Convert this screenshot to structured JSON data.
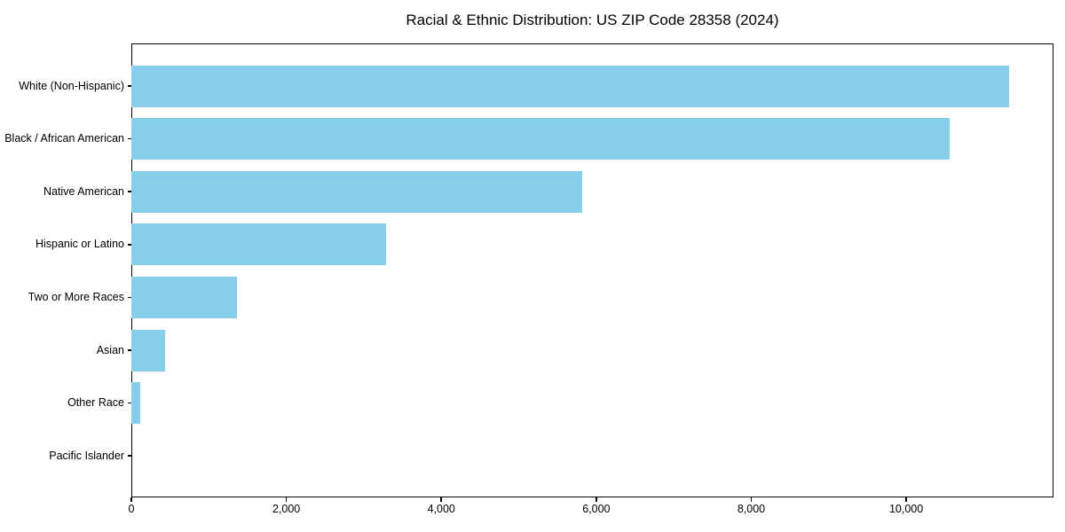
{
  "chart_data": {
    "type": "bar",
    "orientation": "horizontal",
    "title": "Racial & Ethnic Distribution: US ZIP Code 28358 (2024)",
    "categories": [
      "White (Non-Hispanic)",
      "Black / African American",
      "Native American",
      "Hispanic or Latino",
      "Two or More Races",
      "Asian",
      "Other Race",
      "Pacific Islander"
    ],
    "values": [
      11330,
      10555,
      5820,
      3290,
      1365,
      430,
      115,
      0
    ],
    "xlabel": "",
    "ylabel": "",
    "xlim": [
      0,
      11900
    ],
    "xticks": [
      0,
      2000,
      4000,
      6000,
      8000,
      10000
    ],
    "xtick_labels": [
      "0",
      "2,000",
      "4,000",
      "6,000",
      "8,000",
      "10,000"
    ],
    "bar_color": "#87CEEB",
    "axis_color": "#000000",
    "text_color": "#000000",
    "background": "#ffffff",
    "grid": false,
    "legend": "none"
  }
}
